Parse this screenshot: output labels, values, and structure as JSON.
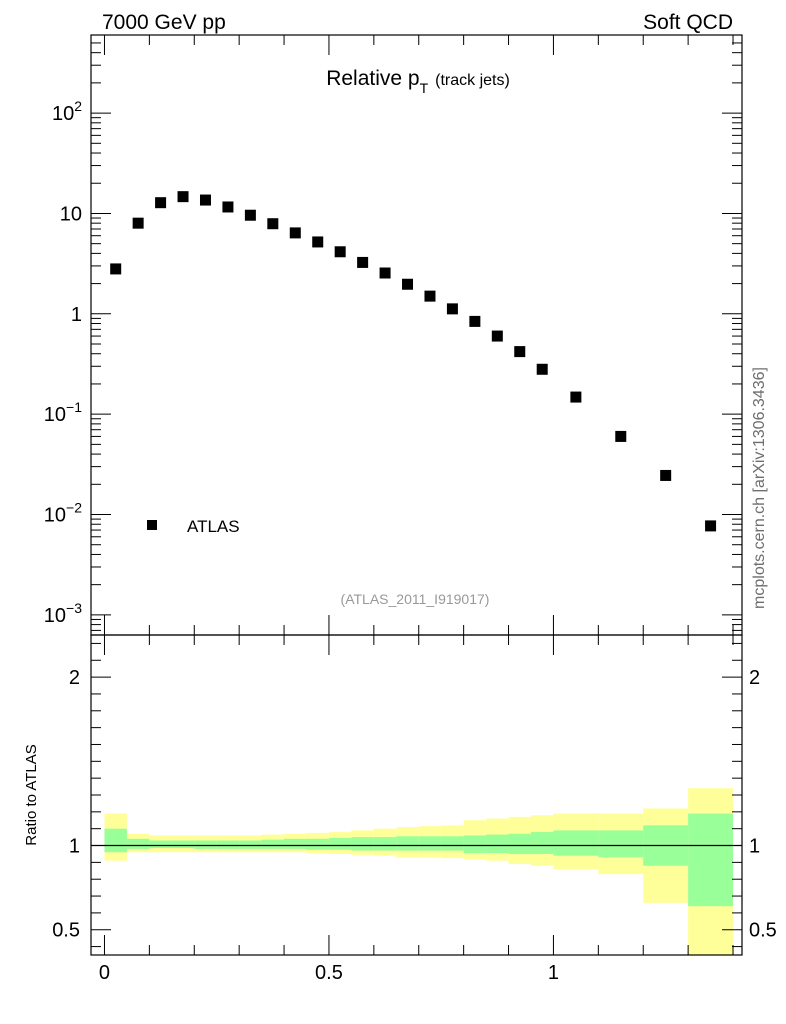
{
  "header": {
    "left_label": "7000 GeV pp",
    "right_label": "Soft QCD",
    "side_label": "mcplots.cern.ch [arXiv:1306.3436]"
  },
  "chart_data": [
    {
      "type": "scatter",
      "title_main": "Relative p",
      "title_sub": "T",
      "title_suffix": "(track jets)",
      "analysis_label": "(ATLAS_2011_I919017)",
      "yscale": "log",
      "ylim": [
        0.00063,
        600
      ],
      "xlim": [
        -0.03,
        1.42
      ],
      "ytick_labels": [
        {
          "value": 0.001,
          "base": "10",
          "exp": "−3"
        },
        {
          "value": 0.01,
          "base": "10",
          "exp": "−2"
        },
        {
          "value": 0.1,
          "base": "10",
          "exp": "−1"
        },
        {
          "value": 1,
          "base": "1",
          "exp": ""
        },
        {
          "value": 10,
          "base": "10",
          "exp": ""
        },
        {
          "value": 100,
          "base": "10",
          "exp": "2"
        }
      ],
      "legend": {
        "entries": [
          "ATLAS"
        ],
        "position": "bottom-left"
      },
      "series": [
        {
          "name": "ATLAS",
          "x": [
            0.025,
            0.075,
            0.125,
            0.175,
            0.225,
            0.275,
            0.325,
            0.375,
            0.425,
            0.475,
            0.525,
            0.575,
            0.625,
            0.675,
            0.725,
            0.775,
            0.825,
            0.875,
            0.925,
            0.975,
            1.05,
            1.15,
            1.25,
            1.35
          ],
          "y": [
            2.8,
            8.0,
            12.8,
            14.7,
            13.6,
            11.6,
            9.6,
            7.9,
            6.4,
            5.2,
            4.15,
            3.25,
            2.55,
            1.97,
            1.5,
            1.12,
            0.84,
            0.6,
            0.42,
            0.28,
            0.148,
            0.06,
            0.0245,
            0.0077
          ]
        }
      ]
    },
    {
      "type": "area",
      "ylabel": "Ratio to ATLAS",
      "ylim": [
        0.35,
        2.25
      ],
      "xlim": [
        -0.03,
        1.42
      ],
      "reference_line": 1,
      "yticks": [
        0.5,
        1,
        2
      ],
      "ytick_labels": [
        "0.5",
        "1",
        "2"
      ],
      "xticks": [
        0,
        0.5,
        1
      ],
      "xtick_labels": [
        "0",
        "0.5",
        "1"
      ],
      "bins": [
        [
          0,
          0.05
        ],
        [
          0.05,
          0.1
        ],
        [
          0.1,
          0.15
        ],
        [
          0.15,
          0.2
        ],
        [
          0.2,
          0.25
        ],
        [
          0.25,
          0.3
        ],
        [
          0.3,
          0.35
        ],
        [
          0.35,
          0.4
        ],
        [
          0.4,
          0.45
        ],
        [
          0.45,
          0.5
        ],
        [
          0.5,
          0.55
        ],
        [
          0.55,
          0.6
        ],
        [
          0.6,
          0.65
        ],
        [
          0.65,
          0.7
        ],
        [
          0.7,
          0.75
        ],
        [
          0.75,
          0.8
        ],
        [
          0.8,
          0.85
        ],
        [
          0.85,
          0.9
        ],
        [
          0.9,
          0.95
        ],
        [
          0.95,
          1.0
        ],
        [
          1.0,
          1.1
        ],
        [
          1.1,
          1.2
        ],
        [
          1.2,
          1.3
        ],
        [
          1.3,
          1.4
        ]
      ],
      "outer_band": {
        "name": "total uncertainty",
        "color": "#ffff99",
        "low": [
          0.91,
          0.96,
          0.96,
          0.96,
          0.96,
          0.96,
          0.96,
          0.96,
          0.96,
          0.955,
          0.95,
          0.945,
          0.94,
          0.93,
          0.93,
          0.925,
          0.92,
          0.91,
          0.89,
          0.88,
          0.86,
          0.83,
          0.66,
          0.3
        ],
        "high": [
          1.19,
          1.07,
          1.06,
          1.06,
          1.06,
          1.06,
          1.06,
          1.065,
          1.07,
          1.075,
          1.08,
          1.09,
          1.1,
          1.11,
          1.115,
          1.12,
          1.15,
          1.16,
          1.17,
          1.18,
          1.19,
          1.19,
          1.22,
          1.34
        ]
      },
      "inner_band": {
        "name": "statistical uncertainty",
        "color": "#99ff99",
        "low": [
          0.96,
          0.98,
          0.985,
          0.985,
          0.98,
          0.98,
          0.98,
          0.98,
          0.98,
          0.975,
          0.975,
          0.97,
          0.97,
          0.97,
          0.97,
          0.97,
          0.955,
          0.955,
          0.95,
          0.95,
          0.94,
          0.93,
          0.88,
          0.64
        ],
        "high": [
          1.1,
          1.04,
          1.03,
          1.03,
          1.03,
          1.03,
          1.03,
          1.035,
          1.04,
          1.04,
          1.045,
          1.05,
          1.05,
          1.055,
          1.055,
          1.055,
          1.06,
          1.065,
          1.07,
          1.08,
          1.09,
          1.09,
          1.12,
          1.19
        ]
      }
    }
  ]
}
